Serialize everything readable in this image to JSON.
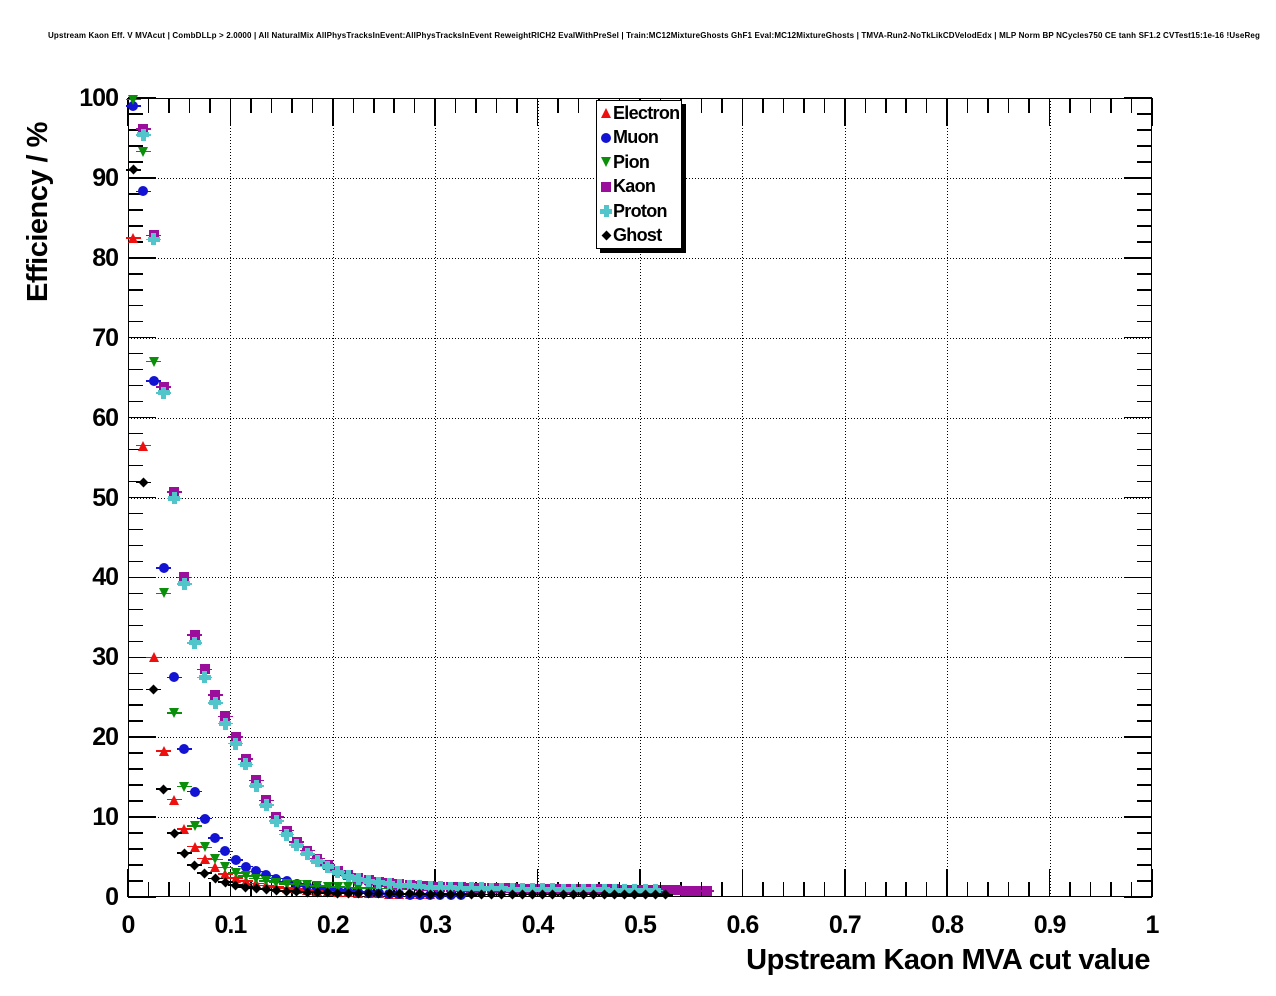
{
  "header": {
    "title": "Upstream Kaon Eff. V MVAcut | CombDLLp > 2.0000 | All NaturalMix AllPhysTracksInEvent:AllPhysTracksInEvent ReweightRICH2 EvalWithPreSel | Train:MC12MixtureGhosts GhF1 Eval:MC12MixtureGhosts | TMVA-Run2-NoTkLikCDVelodEdx | MLP Norm BP NCycles750 CE tanh SF1.2 CVTest15:1e-16 !UseReg"
  },
  "chart": {
    "x_axis": {
      "title": "Upstream Kaon MVA cut value",
      "range": [
        0,
        1
      ],
      "major_tick_values": [
        0,
        0.1,
        0.2,
        0.3,
        0.4,
        0.5,
        0.6,
        0.7,
        0.8,
        0.9,
        1
      ],
      "major_tick_labels": [
        "0",
        "0.1",
        "0.2",
        "0.3",
        "0.4",
        "0.5",
        "0.6",
        "0.7",
        "0.8",
        "0.9",
        "1"
      ],
      "minor_tick_step": 0.02
    },
    "y_axis": {
      "title": "Efficiency / %",
      "range": [
        0,
        100
      ],
      "major_tick_values": [
        0,
        10,
        20,
        30,
        40,
        50,
        60,
        70,
        80,
        90,
        100
      ],
      "major_tick_labels": [
        "0",
        "10",
        "20",
        "30",
        "40",
        "50",
        "60",
        "70",
        "80",
        "90",
        "100"
      ],
      "minor_tick_step": 2
    },
    "grid": {
      "style": "dotted",
      "color": "#000000"
    },
    "legend": {
      "position": "top-center",
      "entries": [
        "Electron",
        "Muon",
        "Pion",
        "Kaon",
        "Proton",
        "Ghost"
      ]
    }
  },
  "chart_data": {
    "type": "scatter",
    "title": "Upstream Kaon Eff. V MVAcut",
    "xlabel": "Upstream Kaon MVA cut value",
    "ylabel": "Efficiency / %",
    "xlim": [
      0,
      1
    ],
    "ylim": [
      0,
      100
    ],
    "grid": true,
    "series": [
      {
        "name": "Electron",
        "color": "#ee0f0f",
        "marker": "triangle-up",
        "points": [
          [
            0.005,
            82.5
          ],
          [
            0.015,
            56.5
          ],
          [
            0.025,
            30.0
          ],
          [
            0.035,
            18.3
          ],
          [
            0.045,
            12.2
          ],
          [
            0.055,
            8.5
          ],
          [
            0.065,
            6.3
          ],
          [
            0.075,
            4.8
          ],
          [
            0.085,
            3.7
          ],
          [
            0.095,
            2.9
          ],
          [
            0.105,
            2.4
          ],
          [
            0.115,
            2.0
          ],
          [
            0.125,
            1.7
          ],
          [
            0.135,
            1.45
          ],
          [
            0.145,
            1.25
          ],
          [
            0.155,
            1.1
          ],
          [
            0.165,
            1.0
          ],
          [
            0.175,
            0.9
          ],
          [
            0.185,
            0.8
          ],
          [
            0.195,
            0.72
          ],
          [
            0.205,
            0.65
          ],
          [
            0.215,
            0.6
          ],
          [
            0.225,
            0.55
          ],
          [
            0.235,
            0.5
          ],
          [
            0.245,
            0.46
          ],
          [
            0.255,
            0.43
          ],
          [
            0.265,
            0.4
          ],
          [
            0.275,
            0.38
          ],
          [
            0.285,
            0.36
          ],
          [
            0.295,
            0.34
          ]
        ]
      },
      {
        "name": "Muon",
        "color": "#1313d3",
        "marker": "circle",
        "points": [
          [
            0.005,
            99.0
          ],
          [
            0.015,
            88.3
          ],
          [
            0.025,
            64.6
          ],
          [
            0.035,
            41.2
          ],
          [
            0.045,
            27.5
          ],
          [
            0.055,
            18.5
          ],
          [
            0.065,
            13.2
          ],
          [
            0.075,
            9.8
          ],
          [
            0.085,
            7.4
          ],
          [
            0.095,
            5.7
          ],
          [
            0.105,
            4.6
          ],
          [
            0.115,
            3.8
          ],
          [
            0.125,
            3.2
          ],
          [
            0.135,
            2.7
          ],
          [
            0.145,
            2.3
          ],
          [
            0.155,
            1.95
          ],
          [
            0.165,
            1.65
          ],
          [
            0.175,
            1.4
          ],
          [
            0.185,
            1.2
          ],
          [
            0.195,
            1.0
          ],
          [
            0.205,
            0.85
          ],
          [
            0.215,
            0.72
          ],
          [
            0.225,
            0.62
          ],
          [
            0.235,
            0.53
          ],
          [
            0.245,
            0.46
          ],
          [
            0.255,
            0.4
          ],
          [
            0.265,
            0.35
          ],
          [
            0.275,
            0.31
          ],
          [
            0.285,
            0.28
          ],
          [
            0.295,
            0.25
          ],
          [
            0.305,
            0.23
          ],
          [
            0.315,
            0.21
          ],
          [
            0.325,
            0.2
          ]
        ]
      },
      {
        "name": "Pion",
        "color": "#0b8f0b",
        "marker": "triangle-down",
        "points": [
          [
            0.005,
            99.8
          ],
          [
            0.015,
            93.3
          ],
          [
            0.025,
            67.0
          ],
          [
            0.035,
            38.0
          ],
          [
            0.045,
            23.0
          ],
          [
            0.055,
            13.8
          ],
          [
            0.065,
            8.9
          ],
          [
            0.075,
            6.2
          ],
          [
            0.085,
            4.7
          ],
          [
            0.095,
            3.7
          ],
          [
            0.105,
            3.0
          ],
          [
            0.115,
            2.6
          ],
          [
            0.125,
            2.3
          ],
          [
            0.135,
            2.0
          ],
          [
            0.145,
            1.8
          ],
          [
            0.155,
            1.65
          ],
          [
            0.165,
            1.55
          ],
          [
            0.175,
            1.45
          ],
          [
            0.185,
            1.35
          ],
          [
            0.195,
            1.3
          ],
          [
            0.205,
            1.25
          ],
          [
            0.215,
            1.2
          ],
          [
            0.225,
            1.15
          ],
          [
            0.235,
            1.1
          ],
          [
            0.245,
            1.08
          ],
          [
            0.255,
            1.05
          ],
          [
            0.265,
            1.02
          ],
          [
            0.275,
            1.0
          ],
          [
            0.285,
            0.98
          ],
          [
            0.295,
            0.96
          ],
          [
            0.305,
            0.95
          ],
          [
            0.315,
            0.93
          ],
          [
            0.325,
            0.92
          ],
          [
            0.335,
            0.9
          ],
          [
            0.345,
            0.9
          ],
          [
            0.355,
            0.89
          ],
          [
            0.365,
            0.88
          ],
          [
            0.375,
            0.87
          ],
          [
            0.385,
            0.86
          ],
          [
            0.395,
            0.85
          ],
          [
            0.405,
            0.85
          ],
          [
            0.415,
            0.84
          ],
          [
            0.425,
            0.84
          ],
          [
            0.435,
            0.83
          ],
          [
            0.445,
            0.83
          ],
          [
            0.455,
            0.82
          ],
          [
            0.465,
            0.82
          ],
          [
            0.475,
            0.81
          ],
          [
            0.485,
            0.8
          ],
          [
            0.495,
            0.8
          ],
          [
            0.505,
            0.79
          ],
          [
            0.515,
            0.78
          ],
          [
            0.525,
            0.78
          ]
        ]
      },
      {
        "name": "Kaon",
        "color": "#9b0d9b",
        "marker": "square",
        "points": [
          [
            0.015,
            96.1
          ],
          [
            0.025,
            82.8
          ],
          [
            0.035,
            63.8
          ],
          [
            0.045,
            50.7
          ],
          [
            0.055,
            40.0
          ],
          [
            0.065,
            32.8
          ],
          [
            0.075,
            28.5
          ],
          [
            0.085,
            25.3
          ],
          [
            0.095,
            22.6
          ],
          [
            0.105,
            20.0
          ],
          [
            0.115,
            17.3
          ],
          [
            0.125,
            14.6
          ],
          [
            0.135,
            12.1
          ],
          [
            0.145,
            10.0
          ],
          [
            0.155,
            8.3
          ],
          [
            0.165,
            6.9
          ],
          [
            0.175,
            5.8
          ],
          [
            0.185,
            4.8
          ],
          [
            0.195,
            4.0
          ],
          [
            0.205,
            3.3
          ],
          [
            0.215,
            2.8
          ],
          [
            0.225,
            2.4
          ],
          [
            0.235,
            2.1
          ],
          [
            0.245,
            1.9
          ],
          [
            0.255,
            1.7
          ],
          [
            0.265,
            1.6
          ],
          [
            0.275,
            1.5
          ],
          [
            0.285,
            1.4
          ],
          [
            0.295,
            1.33
          ],
          [
            0.305,
            1.28
          ],
          [
            0.315,
            1.23
          ],
          [
            0.325,
            1.2
          ],
          [
            0.335,
            1.17
          ],
          [
            0.345,
            1.15
          ],
          [
            0.355,
            1.13
          ],
          [
            0.365,
            1.1
          ],
          [
            0.375,
            1.08
          ],
          [
            0.385,
            1.06
          ],
          [
            0.395,
            1.05
          ],
          [
            0.405,
            1.03
          ],
          [
            0.415,
            1.02
          ],
          [
            0.425,
            1.0
          ],
          [
            0.435,
            1.0
          ],
          [
            0.445,
            0.98
          ],
          [
            0.455,
            0.97
          ],
          [
            0.465,
            0.95
          ],
          [
            0.475,
            0.94
          ],
          [
            0.485,
            0.92
          ],
          [
            0.495,
            0.9
          ],
          [
            0.505,
            0.88
          ],
          [
            0.515,
            0.86
          ],
          [
            0.525,
            0.84
          ],
          [
            0.535,
            0.82
          ],
          [
            0.545,
            0.8
          ],
          [
            0.555,
            0.78
          ],
          [
            0.565,
            0.76
          ]
        ]
      },
      {
        "name": "Proton",
        "color": "#52c5cb",
        "marker": "plus",
        "points": [
          [
            0.015,
            95.4
          ],
          [
            0.025,
            82.3
          ],
          [
            0.035,
            63.1
          ],
          [
            0.045,
            49.9
          ],
          [
            0.055,
            39.2
          ],
          [
            0.065,
            31.8
          ],
          [
            0.075,
            27.5
          ],
          [
            0.085,
            24.3
          ],
          [
            0.095,
            21.7
          ],
          [
            0.105,
            19.2
          ],
          [
            0.115,
            16.6
          ],
          [
            0.125,
            13.9
          ],
          [
            0.135,
            11.5
          ],
          [
            0.145,
            9.5
          ],
          [
            0.155,
            7.8
          ],
          [
            0.165,
            6.5
          ],
          [
            0.175,
            5.4
          ],
          [
            0.185,
            4.5
          ],
          [
            0.195,
            3.8
          ],
          [
            0.205,
            3.1
          ],
          [
            0.215,
            2.6
          ],
          [
            0.225,
            2.25
          ],
          [
            0.235,
            2.0
          ],
          [
            0.245,
            1.8
          ],
          [
            0.255,
            1.65
          ],
          [
            0.265,
            1.5
          ],
          [
            0.275,
            1.4
          ],
          [
            0.285,
            1.32
          ],
          [
            0.295,
            1.25
          ],
          [
            0.305,
            1.2
          ],
          [
            0.315,
            1.16
          ],
          [
            0.325,
            1.12
          ],
          [
            0.335,
            1.1
          ],
          [
            0.345,
            1.07
          ],
          [
            0.355,
            1.05
          ],
          [
            0.365,
            1.03
          ],
          [
            0.375,
            1.0
          ],
          [
            0.385,
            0.99
          ],
          [
            0.395,
            0.97
          ],
          [
            0.405,
            0.96
          ],
          [
            0.415,
            0.95
          ],
          [
            0.425,
            0.93
          ],
          [
            0.435,
            0.92
          ],
          [
            0.445,
            0.9
          ],
          [
            0.455,
            0.89
          ],
          [
            0.465,
            0.88
          ],
          [
            0.475,
            0.86
          ],
          [
            0.485,
            0.85
          ],
          [
            0.495,
            0.84
          ],
          [
            0.505,
            0.83
          ],
          [
            0.515,
            0.82
          ]
        ]
      },
      {
        "name": "Ghost",
        "color": "#000000",
        "marker": "diamond",
        "points": [
          [
            0.005,
            91.0
          ],
          [
            0.015,
            51.9
          ],
          [
            0.025,
            26.0
          ],
          [
            0.035,
            13.5
          ],
          [
            0.045,
            8.0
          ],
          [
            0.055,
            5.5
          ],
          [
            0.065,
            4.0
          ],
          [
            0.075,
            3.0
          ],
          [
            0.085,
            2.3
          ],
          [
            0.095,
            1.85
          ],
          [
            0.105,
            1.5
          ],
          [
            0.115,
            1.25
          ],
          [
            0.125,
            1.05
          ],
          [
            0.135,
            0.92
          ],
          [
            0.145,
            0.82
          ],
          [
            0.155,
            0.73
          ],
          [
            0.165,
            0.66
          ],
          [
            0.175,
            0.6
          ],
          [
            0.185,
            0.56
          ],
          [
            0.195,
            0.52
          ],
          [
            0.205,
            0.49
          ],
          [
            0.215,
            0.47
          ],
          [
            0.225,
            0.45
          ],
          [
            0.235,
            0.43
          ],
          [
            0.245,
            0.42
          ],
          [
            0.255,
            0.41
          ],
          [
            0.265,
            0.4
          ],
          [
            0.275,
            0.39
          ],
          [
            0.285,
            0.38
          ],
          [
            0.295,
            0.37
          ],
          [
            0.305,
            0.36
          ],
          [
            0.315,
            0.36
          ],
          [
            0.325,
            0.35
          ],
          [
            0.335,
            0.35
          ],
          [
            0.345,
            0.34
          ],
          [
            0.355,
            0.34
          ],
          [
            0.365,
            0.33
          ],
          [
            0.375,
            0.33
          ],
          [
            0.385,
            0.32
          ],
          [
            0.395,
            0.32
          ],
          [
            0.405,
            0.31
          ],
          [
            0.415,
            0.31
          ],
          [
            0.425,
            0.3
          ],
          [
            0.435,
            0.3
          ],
          [
            0.445,
            0.3
          ],
          [
            0.455,
            0.29
          ],
          [
            0.465,
            0.29
          ],
          [
            0.475,
            0.28
          ],
          [
            0.485,
            0.28
          ],
          [
            0.495,
            0.28
          ],
          [
            0.505,
            0.27
          ],
          [
            0.515,
            0.27
          ],
          [
            0.525,
            0.27
          ]
        ]
      }
    ]
  }
}
